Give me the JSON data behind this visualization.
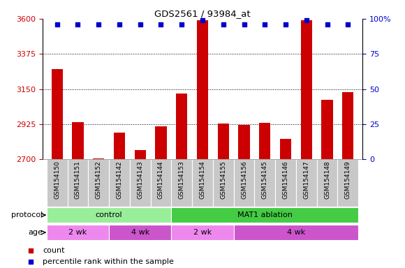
{
  "title": "GDS2561 / 93984_at",
  "samples": [
    "GSM154150",
    "GSM154151",
    "GSM154152",
    "GSM154142",
    "GSM154143",
    "GSM154144",
    "GSM154153",
    "GSM154154",
    "GSM154155",
    "GSM154156",
    "GSM154145",
    "GSM154146",
    "GSM154147",
    "GSM154148",
    "GSM154149"
  ],
  "count_values": [
    3280,
    2940,
    2706,
    2870,
    2760,
    2910,
    3120,
    3590,
    2930,
    2920,
    2935,
    2830,
    3590,
    3080,
    3130
  ],
  "percentile_values": [
    96,
    96,
    96,
    96,
    96,
    96,
    96,
    99,
    96,
    96,
    96,
    96,
    99,
    96,
    96
  ],
  "bar_color": "#cc0000",
  "dot_color": "#0000cc",
  "ylim_left": [
    2700,
    3600
  ],
  "ylim_right": [
    0,
    100
  ],
  "yticks_left": [
    2700,
    2925,
    3150,
    3375,
    3600
  ],
  "yticks_right": [
    0,
    25,
    50,
    75,
    100
  ],
  "grid_lines": [
    2925,
    3150,
    3375
  ],
  "protocol_groups": [
    {
      "label": "control",
      "start": 0,
      "end": 6,
      "color": "#99ee99"
    },
    {
      "label": "MAT1 ablation",
      "start": 6,
      "end": 15,
      "color": "#44cc44"
    }
  ],
  "age_groups": [
    {
      "label": "2 wk",
      "start": 0,
      "end": 3,
      "color": "#ee88ee"
    },
    {
      "label": "4 wk",
      "start": 3,
      "end": 6,
      "color": "#cc55cc"
    },
    {
      "label": "2 wk",
      "start": 6,
      "end": 9,
      "color": "#ee88ee"
    },
    {
      "label": "4 wk",
      "start": 9,
      "end": 15,
      "color": "#cc55cc"
    }
  ],
  "left_color": "#cc0000",
  "right_color": "#0000cc",
  "bg_color": "#ffffff",
  "xticklabels_bg": "#c8c8c8",
  "legend_items": [
    {
      "color": "#cc0000",
      "label": "count"
    },
    {
      "color": "#0000cc",
      "label": "percentile rank within the sample"
    }
  ]
}
